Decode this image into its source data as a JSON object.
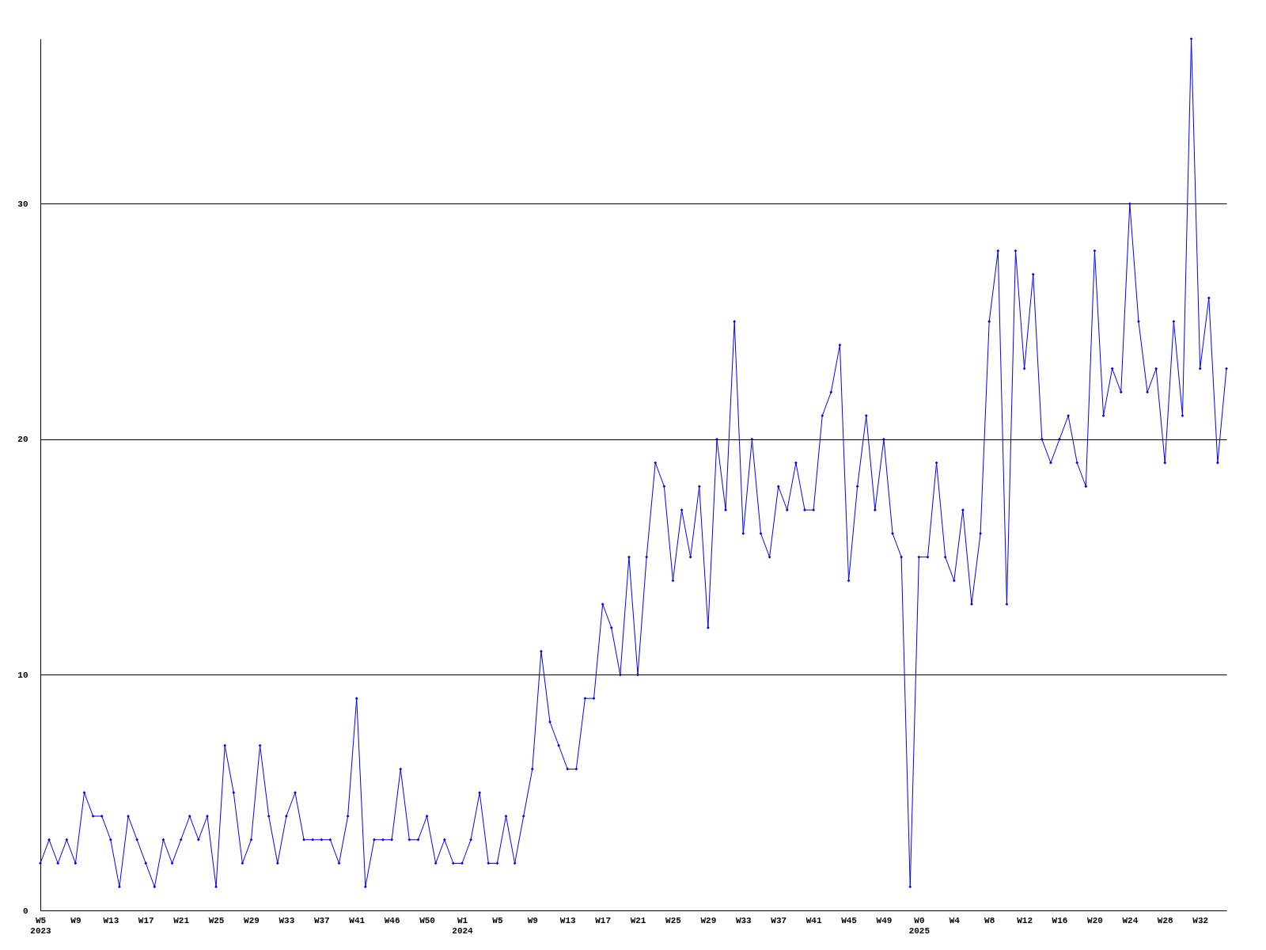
{
  "chart_data": {
    "type": "line",
    "categories": [
      "W5\n2023",
      null,
      null,
      null,
      "W9",
      null,
      null,
      null,
      "W13",
      null,
      null,
      null,
      "W17",
      null,
      null,
      null,
      "W21",
      null,
      null,
      null,
      "W25",
      null,
      null,
      null,
      "W29",
      null,
      null,
      null,
      "W33",
      null,
      null,
      null,
      "W37",
      null,
      null,
      null,
      "W41",
      null,
      null,
      null,
      "W46",
      null,
      null,
      null,
      "W50",
      null,
      null,
      null,
      "W1\n2024",
      null,
      null,
      null,
      "W5",
      null,
      null,
      null,
      "W9",
      null,
      null,
      null,
      "W13",
      null,
      null,
      null,
      "W17",
      null,
      null,
      null,
      "W21",
      null,
      null,
      null,
      "W25",
      null,
      null,
      null,
      "W29",
      null,
      null,
      null,
      "W33",
      null,
      null,
      null,
      "W37",
      null,
      null,
      null,
      "W41",
      null,
      null,
      null,
      "W45",
      null,
      null,
      null,
      "W49",
      null,
      null,
      null,
      "W0\n2025",
      null,
      null,
      null,
      "W4",
      null,
      null,
      null,
      "W8",
      null,
      null,
      null,
      "W12",
      null,
      null,
      null,
      "W16",
      null,
      null,
      null,
      "W20",
      null,
      null,
      null,
      "W24",
      null,
      null,
      null,
      "W28",
      null,
      null,
      null,
      "W32",
      null,
      null,
      null
    ],
    "series": [
      {
        "color": "#0000ff",
        "values": [
          2,
          3,
          2,
          3,
          2,
          5,
          4,
          4,
          3,
          1,
          4,
          3,
          2,
          1,
          3,
          2,
          3,
          4,
          3,
          4,
          1,
          7,
          5,
          2,
          3,
          7,
          4,
          2,
          4,
          5,
          3,
          3,
          3,
          3,
          2,
          4,
          9,
          1,
          3,
          3,
          3,
          6,
          3,
          3,
          4,
          2,
          3,
          2,
          2,
          3,
          5,
          2,
          2,
          4,
          2,
          4,
          6,
          11,
          8,
          7,
          6,
          6,
          9,
          9,
          13,
          12,
          10,
          15,
          10,
          15,
          19,
          18,
          14,
          17,
          15,
          18,
          12,
          20,
          17,
          25,
          16,
          20,
          16,
          15,
          18,
          17,
          19,
          17,
          17,
          21,
          22,
          24,
          14,
          18,
          21,
          17,
          20,
          16,
          15,
          1,
          15,
          15,
          19,
          15,
          14,
          17,
          13,
          16,
          25,
          28,
          13,
          28,
          23,
          27,
          20,
          19,
          20,
          21,
          19,
          18,
          28,
          21,
          23,
          22,
          30,
          25,
          22,
          23,
          19,
          25,
          21,
          37,
          23,
          26,
          19,
          23
        ]
      }
    ],
    "ylim": [
      0,
      37
    ],
    "yticks": [
      0,
      10,
      20,
      30
    ],
    "grid": "y",
    "marker": "diamond",
    "line_style": "solid"
  }
}
